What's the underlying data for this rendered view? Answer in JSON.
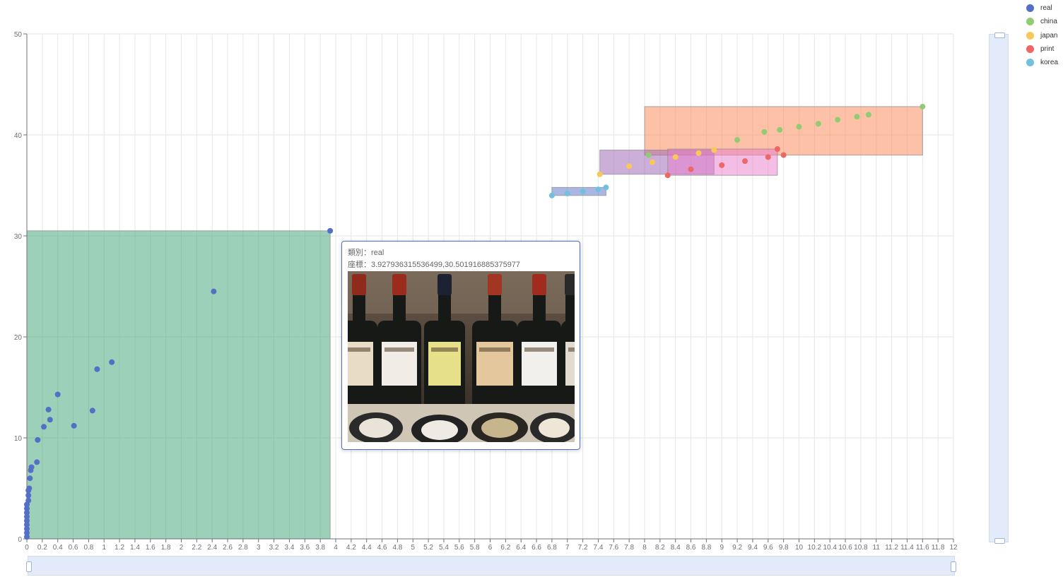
{
  "chart_data": {
    "type": "scatter",
    "title": "",
    "xlabel": "",
    "ylabel": "",
    "xlim": [
      0,
      12
    ],
    "ylim": [
      0,
      50
    ],
    "x_ticks": [
      0,
      0.2,
      0.4,
      0.6,
      0.8,
      1,
      1.2,
      1.4,
      1.6,
      1.8,
      2,
      2.2,
      2.4,
      2.6,
      2.8,
      3,
      3.2,
      3.4,
      3.6,
      3.8,
      4,
      4.2,
      4.4,
      4.6,
      4.8,
      5,
      5.2,
      5.4,
      5.6,
      5.8,
      6,
      6.2,
      6.4,
      6.6,
      6.8,
      7,
      7.2,
      7.4,
      7.6,
      7.8,
      8,
      8.2,
      8.4,
      8.6,
      8.8,
      9,
      9.2,
      9.4,
      9.6,
      9.8,
      10,
      10.2,
      10.4,
      10.6,
      10.8,
      11,
      11.2,
      11.4,
      11.6,
      11.8,
      12
    ],
    "y_ticks": [
      0,
      10,
      20,
      30,
      40,
      50
    ],
    "grid": true,
    "legend_position": "top-right",
    "series": [
      {
        "name": "real",
        "color": "#5470c6",
        "points": [
          [
            0,
            0.2
          ],
          [
            0,
            0.6
          ],
          [
            0,
            1
          ],
          [
            0,
            1.4
          ],
          [
            0,
            1.8
          ],
          [
            0,
            2.2
          ],
          [
            0,
            2.6
          ],
          [
            0,
            3
          ],
          [
            0,
            3.4
          ],
          [
            0.02,
            3.8
          ],
          [
            0.02,
            4.3
          ],
          [
            0.02,
            4.8
          ],
          [
            0.03,
            5
          ],
          [
            0.04,
            6
          ],
          [
            0.05,
            6.8
          ],
          [
            0.06,
            7.1
          ],
          [
            0.13,
            7.6
          ],
          [
            0.14,
            9.8
          ],
          [
            0.22,
            11.1
          ],
          [
            0.28,
            12.8
          ],
          [
            0.3,
            11.8
          ],
          [
            0.4,
            14.3
          ],
          [
            0.61,
            11.2
          ],
          [
            0.85,
            12.7
          ],
          [
            0.91,
            16.8
          ],
          [
            1.1,
            17.5
          ],
          [
            2.42,
            24.5
          ],
          [
            3.928,
            30.502
          ]
        ],
        "box": {
          "x": [
            0,
            3.928
          ],
          "y": [
            0,
            30.502
          ],
          "color": "#3ba272"
        }
      },
      {
        "name": "china",
        "color": "#91cc75",
        "points": [
          [
            8.05,
            38
          ],
          [
            9.2,
            39.5
          ],
          [
            9.55,
            40.3
          ],
          [
            9.75,
            40.5
          ],
          [
            10,
            40.8
          ],
          [
            10.25,
            41.1
          ],
          [
            10.5,
            41.5
          ],
          [
            10.75,
            41.8
          ],
          [
            10.9,
            42
          ],
          [
            11.6,
            42.8
          ]
        ],
        "box": {
          "x": [
            8,
            11.6
          ],
          "y": [
            38,
            42.8
          ],
          "color": "#fc8452"
        }
      },
      {
        "name": "japan",
        "color": "#fac858",
        "points": [
          [
            7.42,
            36.1
          ],
          [
            7.8,
            36.9
          ],
          [
            8.1,
            37.3
          ],
          [
            8.4,
            37.8
          ],
          [
            8.7,
            38.2
          ],
          [
            8.9,
            38.5
          ]
        ],
        "box": {
          "x": [
            7.42,
            8.9
          ],
          "y": [
            36.1,
            38.5
          ],
          "color": "#9a60b4"
        }
      },
      {
        "name": "print",
        "color": "#ee6666",
        "points": [
          [
            8.3,
            36
          ],
          [
            8.6,
            36.6
          ],
          [
            9,
            37
          ],
          [
            9.3,
            37.4
          ],
          [
            9.6,
            37.8
          ],
          [
            9.72,
            38.6
          ],
          [
            9.8,
            38
          ]
        ],
        "box": {
          "x": [
            8.3,
            9.72
          ],
          "y": [
            36,
            38.6
          ],
          "color": "#ea7ccc"
        }
      },
      {
        "name": "korea",
        "color": "#73c0de",
        "points": [
          [
            6.8,
            34
          ],
          [
            7,
            34.2
          ],
          [
            7.2,
            34.4
          ],
          [
            7.4,
            34.6
          ],
          [
            7.5,
            34.8
          ]
        ],
        "box": {
          "x": [
            6.8,
            7.5
          ],
          "y": [
            34,
            34.8
          ],
          "color": "#5470c6"
        }
      }
    ]
  },
  "tooltip": {
    "category_label": "類別：",
    "category_value": "real",
    "coord_label": "座標：",
    "coord_value": "3.927936315536499,30.501916885375977"
  }
}
